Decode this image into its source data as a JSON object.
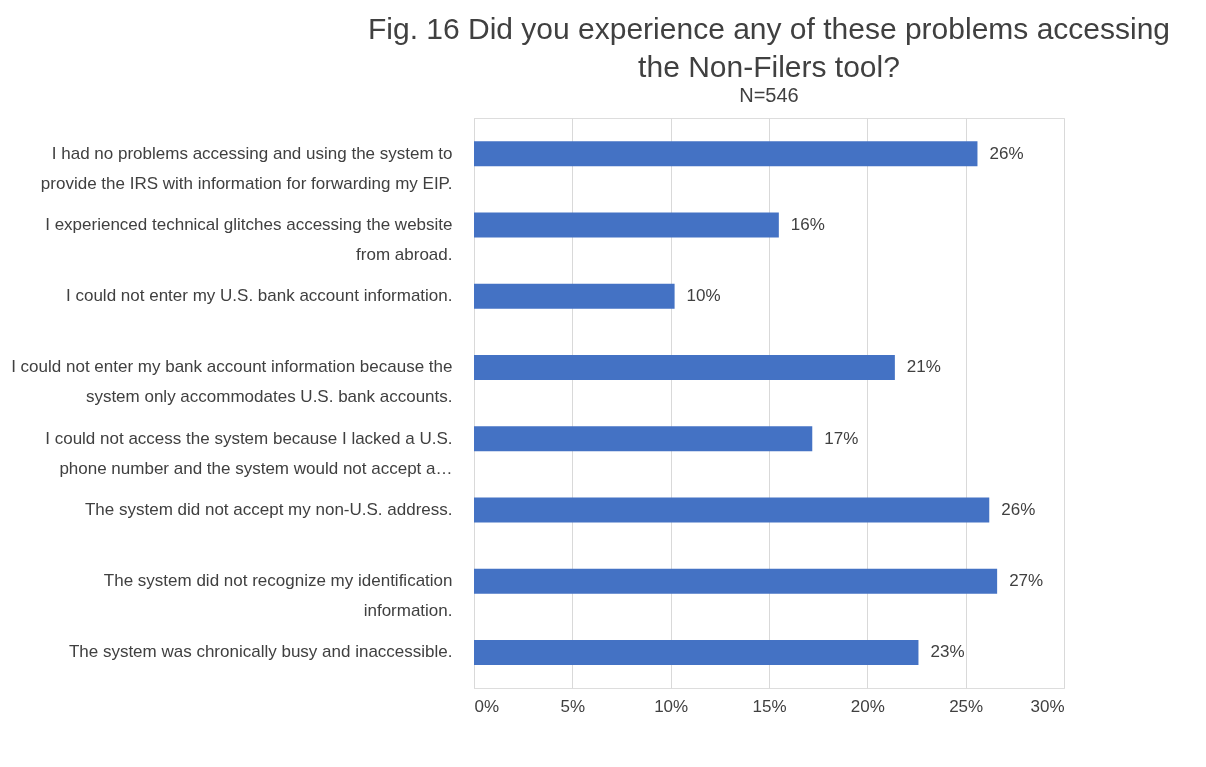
{
  "chart_data": {
    "type": "bar",
    "orientation": "horizontal",
    "title": "Fig. 16  Did you experience any of these problems accessing the Non-Filers tool?",
    "subtitle": "N=546",
    "categories": [
      "I had no problems accessing and using the system to provide the IRS with information for forwarding my EIP.",
      "I experienced technical glitches accessing the website from abroad.",
      "I could not enter my U.S. bank account information.",
      "I could not enter my bank account information because the system only accommodates U.S. bank accounts.",
      "I could not access the system because I lacked a U.S. phone number and the system would not accept a…",
      "The system did not accept my non-U.S. address.",
      "The system did not recognize my identification information.",
      "The system was chronically busy and inaccessible."
    ],
    "values": [
      25.6,
      15.5,
      10.2,
      21.4,
      17.2,
      26.2,
      26.6,
      22.6
    ],
    "value_labels": [
      "26%",
      "16%",
      "10%",
      "21%",
      "17%",
      "26%",
      "27%",
      "23%"
    ],
    "color": "#4472c4",
    "xlim": [
      0,
      30
    ],
    "xticks": [
      {
        "value": 0,
        "label": "0%"
      },
      {
        "value": 5,
        "label": "5%"
      },
      {
        "value": 10,
        "label": "10%"
      },
      {
        "value": 15,
        "label": "15%"
      },
      {
        "value": 20,
        "label": "20%"
      },
      {
        "value": 25,
        "label": "25%"
      },
      {
        "value": 30,
        "label": "30%"
      }
    ],
    "grid": "x"
  }
}
